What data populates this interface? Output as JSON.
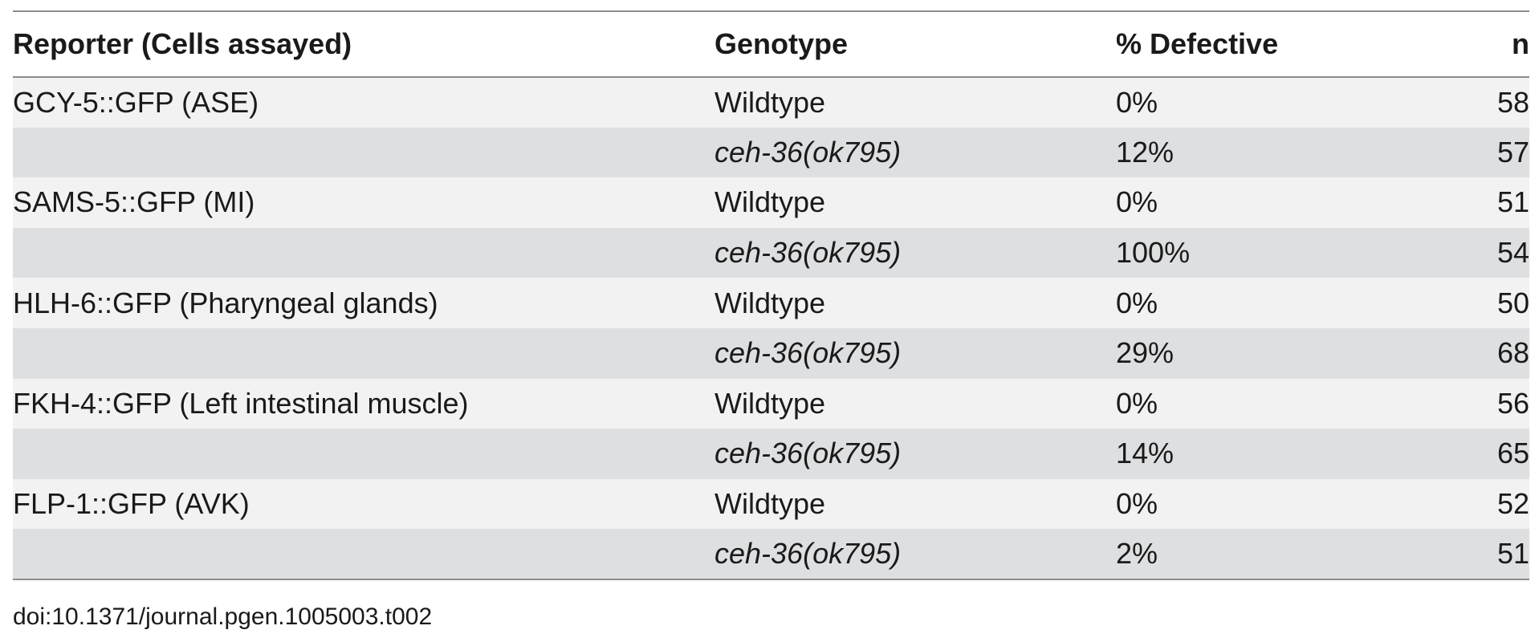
{
  "table": {
    "headers": {
      "reporter": "Reporter (Cells assayed)",
      "genotype": "Genotype",
      "defective": "% Defective",
      "n": "n"
    },
    "rows": [
      {
        "reporter": "GCY-5::GFP (ASE)",
        "genotype": "Wildtype",
        "defective": "0%",
        "n": "58"
      },
      {
        "reporter": "",
        "genotype": "ceh-36(ok795)",
        "defective": "12%",
        "n": "57"
      },
      {
        "reporter": "SAMS-5::GFP (MI)",
        "genotype": "Wildtype",
        "defective": "0%",
        "n": "51"
      },
      {
        "reporter": "",
        "genotype": "ceh-36(ok795)",
        "defective": "100%",
        "n": "54"
      },
      {
        "reporter": "HLH-6::GFP (Pharyngeal glands)",
        "genotype": "Wildtype",
        "defective": "0%",
        "n": "50"
      },
      {
        "reporter": "",
        "genotype": "ceh-36(ok795)",
        "defective": "29%",
        "n": "68"
      },
      {
        "reporter": "FKH-4::GFP (Left intestinal muscle)",
        "genotype": "Wildtype",
        "defective": "0%",
        "n": "56"
      },
      {
        "reporter": "",
        "genotype": "ceh-36(ok795)",
        "defective": "14%",
        "n": "65"
      },
      {
        "reporter": "FLP-1::GFP (AVK)",
        "genotype": "Wildtype",
        "defective": "0%",
        "n": "52"
      },
      {
        "reporter": "",
        "genotype": "ceh-36(ok795)",
        "defective": "2%",
        "n": "51"
      }
    ]
  },
  "footer": {
    "doi": "doi:10.1371/journal.pgen.1005003.t002"
  },
  "colors": {
    "row_light": "#f2f2f2",
    "row_dark": "#dedfe1",
    "rule": "#8c8c8c"
  }
}
